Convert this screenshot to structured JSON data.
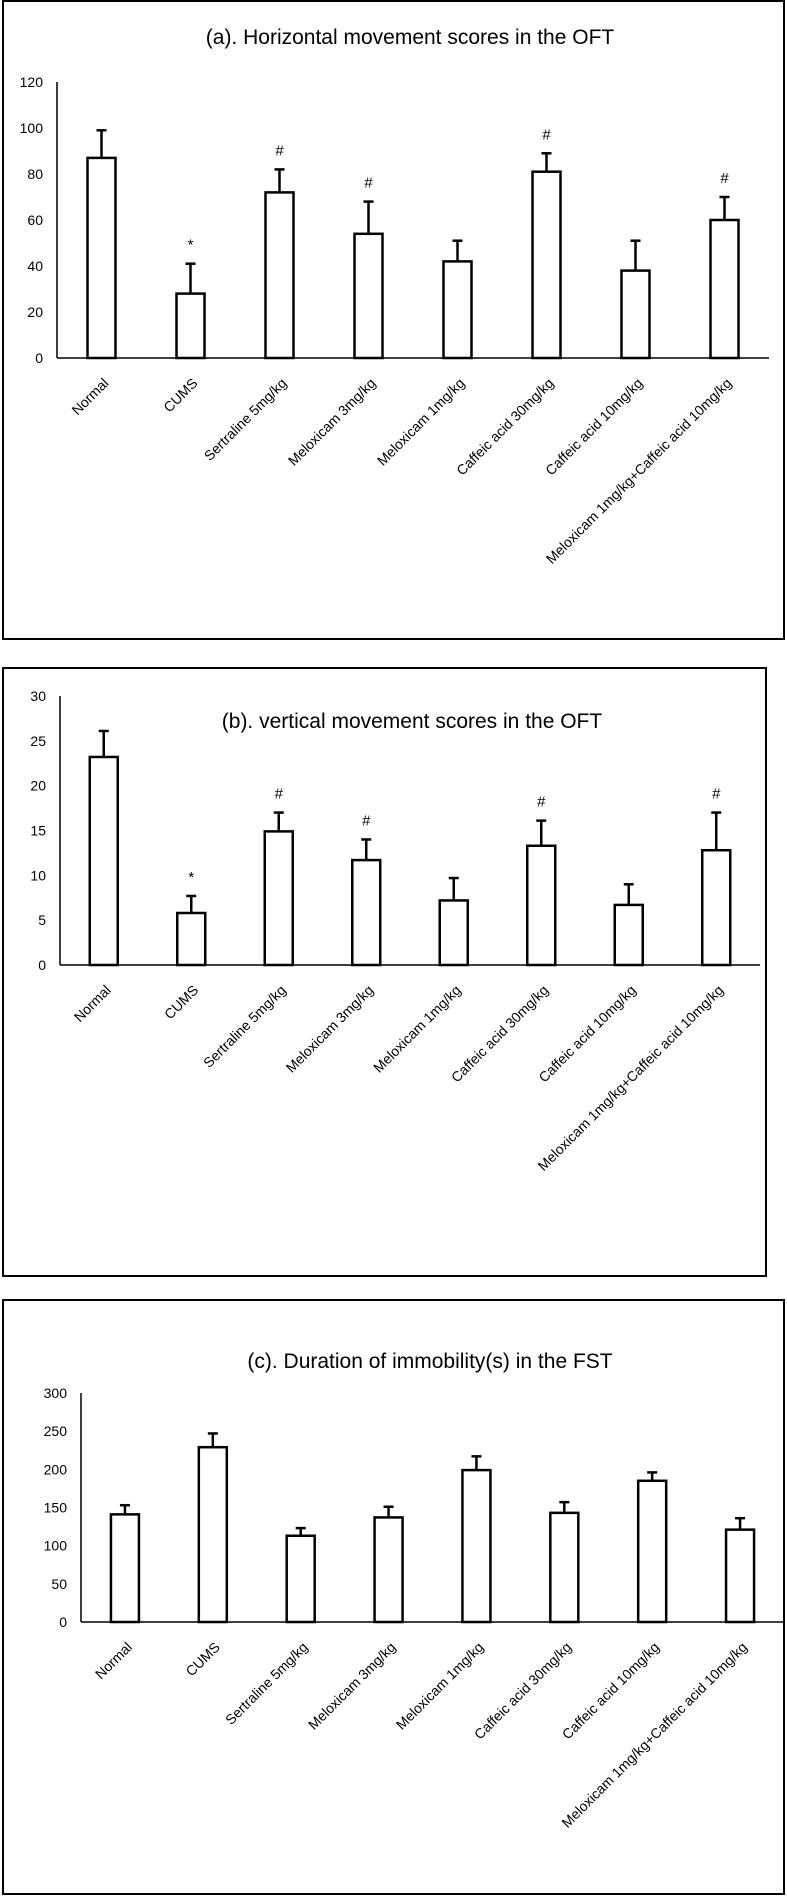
{
  "chart_data": [
    {
      "type": "bar",
      "title": "(a). Horizontal movement scores in the OFT",
      "xlabel": "",
      "ylabel": "",
      "ylim": [
        0,
        120
      ],
      "yticks": [
        0,
        20,
        40,
        60,
        80,
        100,
        120
      ],
      "categories": [
        "Normal",
        "CUMS",
        "Sertraline 5mg/kg",
        "Meloxicam 3mg/kg",
        "Meloxicam 1mg/kg",
        "Caffeic acid 30mg/kg",
        "Caffeic acid 10mg/kg",
        "Meloxicam 1mg/kg+Caffeic acid 10mg/kg"
      ],
      "values": [
        87,
        28,
        72,
        54,
        42,
        81,
        38,
        60
      ],
      "errors": [
        12,
        13,
        10,
        14,
        9,
        8,
        13,
        10
      ],
      "annotations": [
        "",
        "*",
        "#",
        "#",
        "",
        "#",
        "",
        "#"
      ],
      "grid": false,
      "bar_fill": "#ffffff",
      "bar_stroke": "#000000"
    },
    {
      "type": "bar",
      "title": "(b). vertical movement scores in the OFT",
      "xlabel": "",
      "ylabel": "",
      "ylim": [
        0,
        30
      ],
      "yticks": [
        0,
        5,
        10,
        15,
        20,
        25,
        30
      ],
      "categories": [
        "Normal",
        "CUMS",
        "Sertraline 5mg/kg",
        "Meloxicam 3mg/kg",
        "Meloxicam 1mg/kg",
        "Caffeic acid 30mg/kg",
        "Caffeic acid 10mg/kg",
        "Meloxicam 1mg/kg+Caffeic acid 10mg/kg"
      ],
      "values": [
        23.2,
        5.8,
        14.9,
        11.7,
        7.2,
        13.3,
        6.7,
        12.8
      ],
      "errors": [
        2.9,
        1.9,
        2.1,
        2.3,
        2.5,
        2.8,
        2.3,
        4.2
      ],
      "annotations": [
        "",
        "*",
        "#",
        "#",
        "",
        "#",
        "",
        "#"
      ],
      "grid": false,
      "bar_fill": "#ffffff",
      "bar_stroke": "#000000"
    },
    {
      "type": "bar",
      "title": "(c). Duration of immobility(s) in the FST",
      "xlabel": "",
      "ylabel": "",
      "ylim": [
        0,
        300
      ],
      "yticks": [
        0,
        50,
        100,
        150,
        200,
        250,
        300
      ],
      "categories": [
        "Normal",
        "CUMS",
        "Sertraline 5mg/kg",
        "Meloxicam 3mg/kg",
        "Meloxicam 1mg/kg",
        "Caffeic acid 30mg/kg",
        "Caffeic acid 10mg/kg",
        "Meloxicam 1mg/kg+Caffeic acid 10mg/kg"
      ],
      "values": [
        141,
        229,
        113,
        137,
        199,
        143,
        185,
        121
      ],
      "errors": [
        12,
        18,
        10,
        14,
        18,
        14,
        11,
        15
      ],
      "annotations": [
        "",
        "",
        "",
        "",
        "",
        "",
        "",
        ""
      ],
      "grid": false,
      "bar_fill": "#ffffff",
      "bar_stroke": "#000000"
    }
  ]
}
